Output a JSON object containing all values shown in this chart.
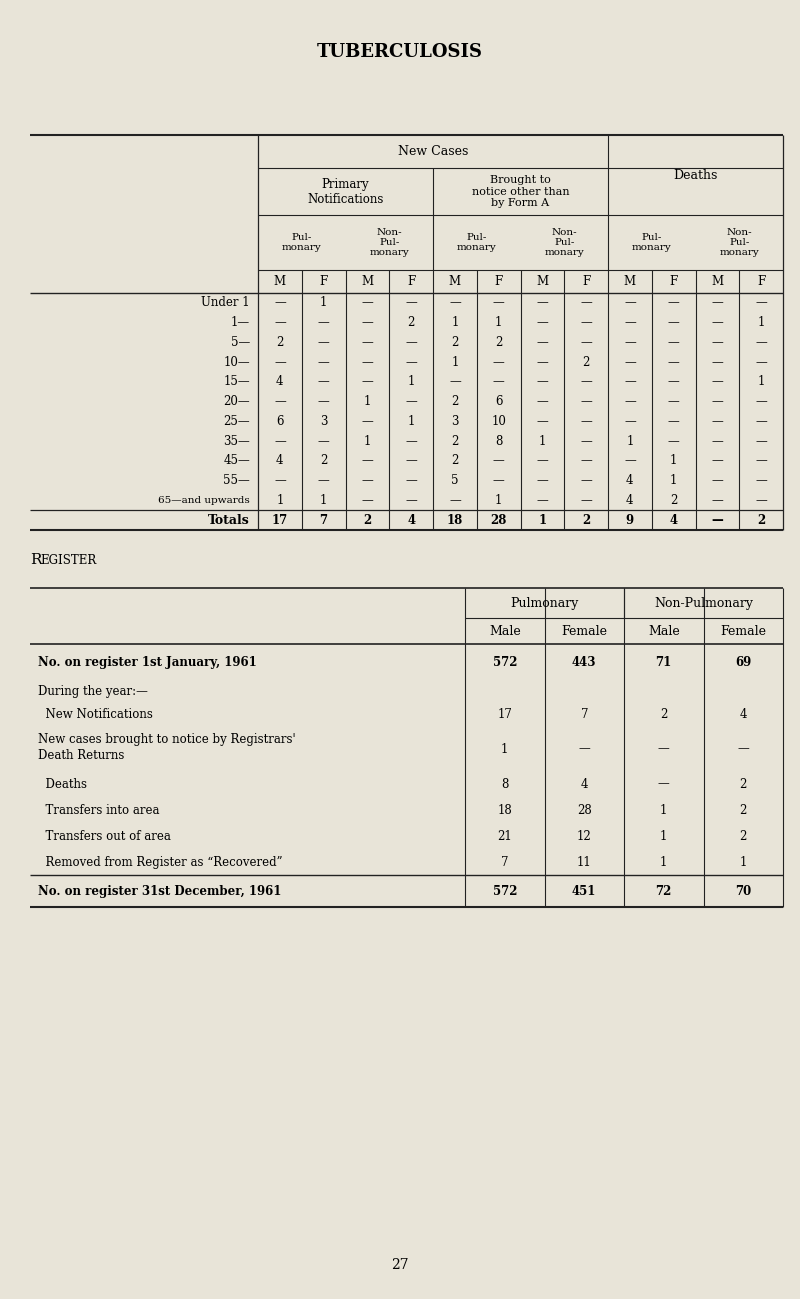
{
  "title": "TUBERCULOSIS",
  "bg_color": "#e8e4d8",
  "table1": {
    "age_groups": [
      "Under 1",
      "1—",
      "5—",
      "10—",
      "15—",
      "20—",
      "25—",
      "35—",
      "45—",
      "55—",
      "65—and upwards",
      "Totals"
    ],
    "data": [
      [
        "—",
        "1",
        "—",
        "—",
        "—",
        "—",
        "—",
        "—",
        "—",
        "—",
        "—",
        "—"
      ],
      [
        "—",
        "—",
        "—",
        "2",
        "1",
        "1",
        "—",
        "—",
        "—",
        "—",
        "—",
        "1"
      ],
      [
        "2",
        "—",
        "—",
        "—",
        "2",
        "2",
        "—",
        "—",
        "—",
        "—",
        "—",
        "—"
      ],
      [
        "—",
        "—",
        "—",
        "—",
        "1",
        "—",
        "—",
        "2",
        "—",
        "—",
        "—",
        "—"
      ],
      [
        "4",
        "—",
        "—",
        "1",
        "—",
        "—",
        "—",
        "—",
        "—",
        "—",
        "—",
        "1"
      ],
      [
        "—",
        "—",
        "1",
        "—",
        "2",
        "6",
        "—",
        "—",
        "—",
        "—",
        "—",
        "—"
      ],
      [
        "6",
        "3",
        "—",
        "1",
        "3",
        "10",
        "—",
        "—",
        "—",
        "—",
        "—",
        "—"
      ],
      [
        "—",
        "—",
        "1",
        "—",
        "2",
        "8",
        "1",
        "—",
        "1",
        "—",
        "—",
        "—"
      ],
      [
        "4",
        "2",
        "—",
        "—",
        "2",
        "—",
        "—",
        "—",
        "—",
        "1",
        "—",
        "—"
      ],
      [
        "—",
        "—",
        "—",
        "—",
        "5",
        "—",
        "—",
        "—",
        "4",
        "1",
        "—",
        "—"
      ],
      [
        "1",
        "1",
        "—",
        "—",
        "—",
        "1",
        "—",
        "—",
        "4",
        "2",
        "—",
        "—"
      ],
      [
        "17",
        "7",
        "2",
        "4",
        "18",
        "28",
        "1",
        "2",
        "9",
        "4",
        "—",
        "2"
      ]
    ]
  },
  "table2": {
    "col_subheaders": [
      "Male",
      "Female",
      "Male",
      "Female"
    ],
    "rows": [
      [
        "No. on register 1st January, 1961    ",
        "572",
        "443",
        "71",
        "69"
      ],
      [
        "During the year:—",
        "",
        "",
        "",
        ""
      ],
      [
        "  New Notifications",
        "17",
        "7",
        "2",
        "4"
      ],
      [
        "  New cases brought to notice by Registrars'|  Death Returns",
        "1",
        "—",
        "—",
        "—"
      ],
      [
        "  Deaths",
        "8",
        "4",
        "—",
        "2"
      ],
      [
        "  Transfers into area",
        "18",
        "28",
        "1",
        "2"
      ],
      [
        "  Transfers out of area",
        "21",
        "12",
        "1",
        "2"
      ],
      [
        "  Removed from Register as “Recovered”",
        "7",
        "11",
        "1",
        "1"
      ],
      [
        "No. on register 31st December, 1961    ",
        "572",
        "451",
        "72",
        "70"
      ]
    ]
  },
  "page_number": "27"
}
